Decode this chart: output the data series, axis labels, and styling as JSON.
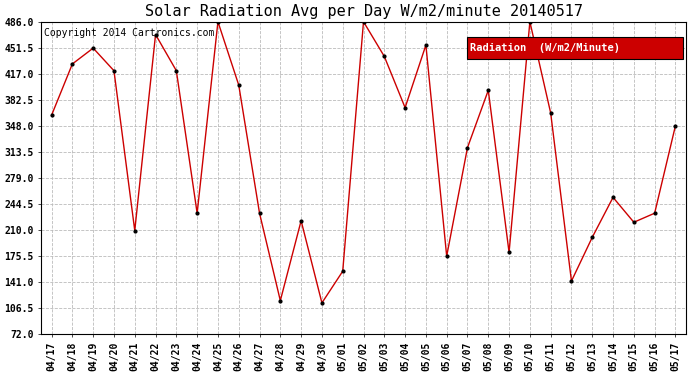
{
  "title": "Solar Radiation Avg per Day W/m2/minute 20140517",
  "copyright": "Copyright 2014 Cartronics.com",
  "legend_label": "Radiation  (W/m2/Minute)",
  "dates": [
    "04/17",
    "04/18",
    "04/19",
    "04/20",
    "04/21",
    "04/22",
    "04/23",
    "04/24",
    "04/25",
    "04/26",
    "04/27",
    "04/28",
    "04/29",
    "04/30",
    "05/01",
    "05/02",
    "05/03",
    "05/04",
    "05/05",
    "05/06",
    "05/07",
    "05/08",
    "05/09",
    "05/10",
    "05/11",
    "05/12",
    "05/13",
    "05/14",
    "05/15",
    "05/16",
    "05/17"
  ],
  "values": [
    362,
    430,
    451,
    421,
    209,
    469,
    421,
    232,
    486,
    402,
    232,
    116,
    222,
    113,
    155,
    486,
    440,
    372,
    455,
    175,
    319,
    395,
    180,
    486,
    365,
    142,
    200,
    253,
    220,
    232,
    348
  ],
  "line_color": "#cc0000",
  "marker_color": "#000000",
  "bg_color": "#ffffff",
  "plot_bg_color": "#ffffff",
  "grid_color": "#bbbbbb",
  "yticks": [
    72.0,
    106.5,
    141.0,
    175.5,
    210.0,
    244.5,
    279.0,
    313.5,
    348.0,
    382.5,
    417.0,
    451.5,
    486.0
  ],
  "ymin": 72.0,
  "ymax": 486.0,
  "title_fontsize": 11,
  "axis_fontsize": 7,
  "copyright_fontsize": 7,
  "legend_fontsize": 7.5,
  "legend_bg": "#cc0000",
  "legend_text_color": "#ffffff"
}
